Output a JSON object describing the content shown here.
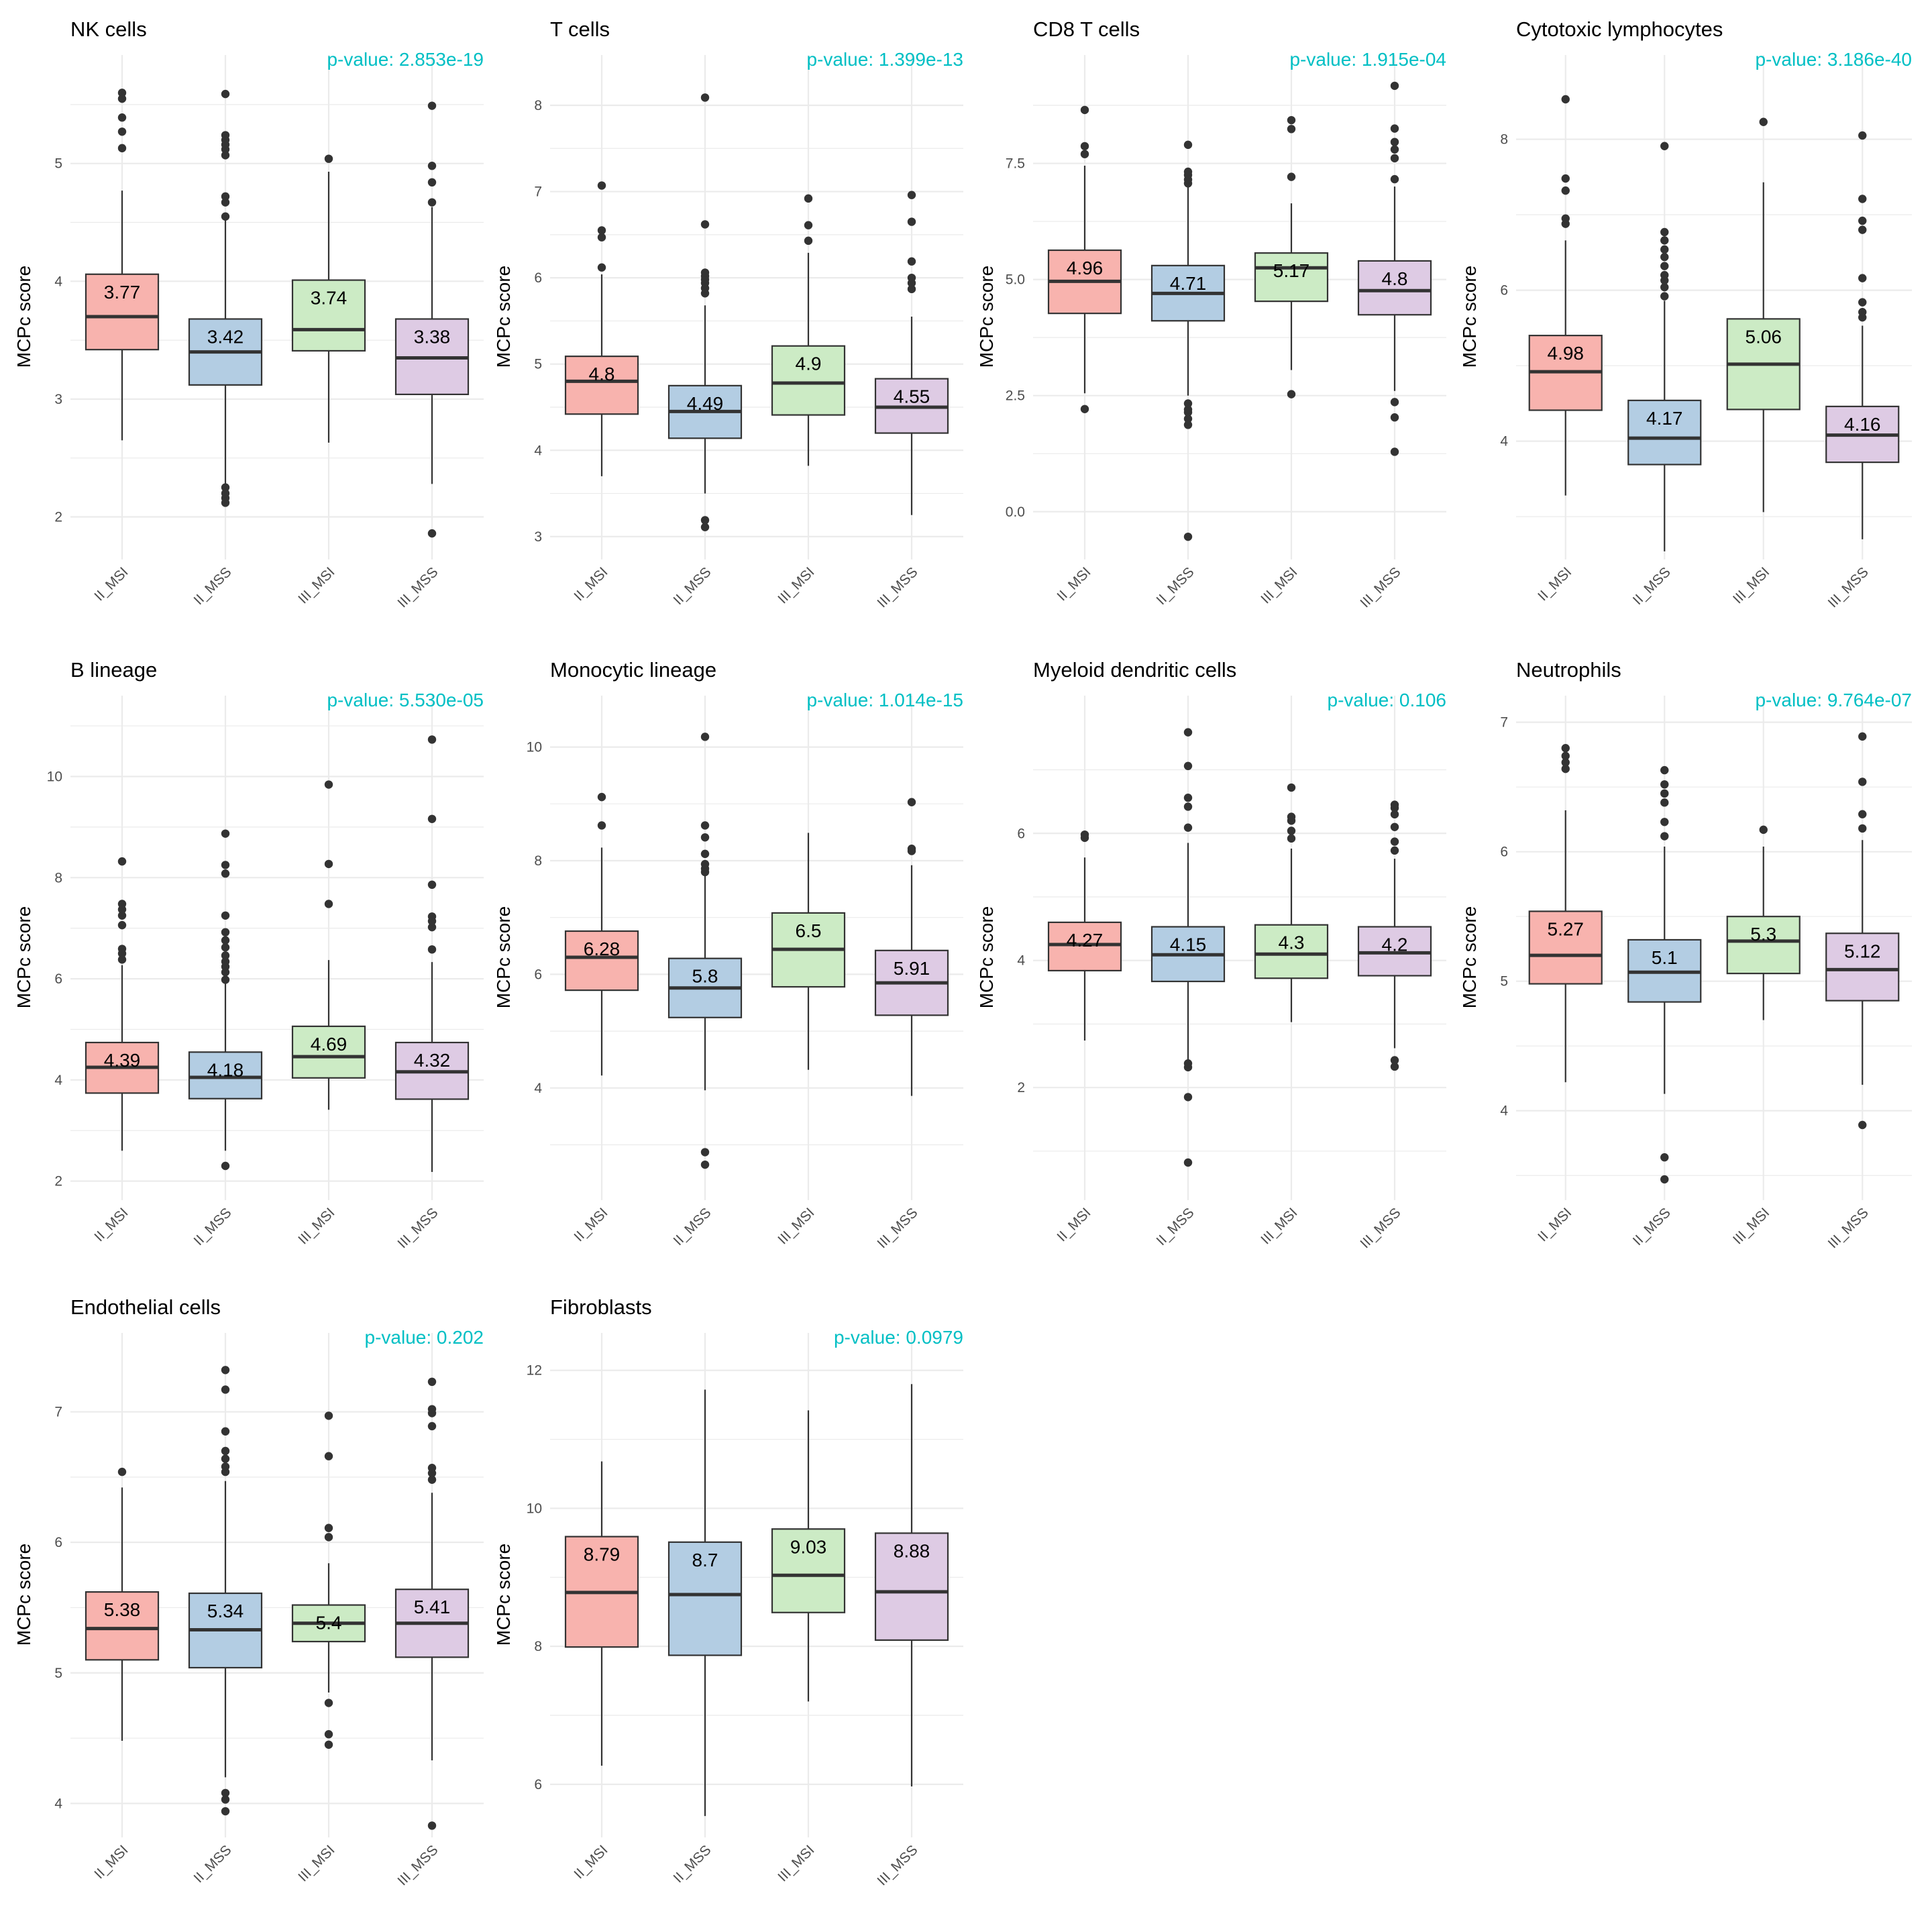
{
  "figure": {
    "ylabel": "MCPc score",
    "categories": [
      "II_MSI",
      "II_MSS",
      "III_MSI",
      "III_MSS"
    ],
    "colors": {
      "fills": [
        "#F8B3AE",
        "#B3CDE3",
        "#CCEBC5",
        "#DECBE4"
      ],
      "pvalue": "#00BFC4",
      "grid": "#EBEBEB",
      "box_border": "#333333",
      "text": "#000000",
      "tick_text": "#4D4D4D"
    }
  },
  "chart_data": [
    {
      "type": "box",
      "title": "NK cells",
      "pvalue_label": "p-value: 2.853e-19",
      "ylim": [
        1.65,
        5.75
      ],
      "yticks": [
        2,
        3,
        4,
        5
      ],
      "boxes": [
        {
          "category": "II_MSI",
          "label": "3.77",
          "q1": 3.42,
          "median": 3.7,
          "q3": 4.06,
          "whisker_low": 2.65,
          "whisker_high": 4.77,
          "outliers": [
            5.13,
            5.27,
            5.39,
            5.55,
            5.6
          ]
        },
        {
          "category": "II_MSS",
          "label": "3.42",
          "q1": 3.12,
          "median": 3.4,
          "q3": 3.68,
          "whisker_low": 2.28,
          "whisker_high": 4.52,
          "outliers": [
            2.12,
            2.16,
            2.2,
            2.25,
            4.55,
            4.67,
            4.72,
            5.07,
            5.12,
            5.16,
            5.2,
            5.24,
            5.59
          ]
        },
        {
          "category": "III_MSI",
          "label": "3.74",
          "q1": 3.41,
          "median": 3.59,
          "q3": 4.01,
          "whisker_low": 2.63,
          "whisker_high": 4.93,
          "outliers": [
            5.04
          ]
        },
        {
          "category": "III_MSS",
          "label": "3.38",
          "q1": 3.04,
          "median": 3.35,
          "q3": 3.68,
          "whisker_low": 2.28,
          "whisker_high": 4.63,
          "outliers": [
            1.86,
            4.67,
            4.84,
            4.98,
            5.49
          ]
        }
      ]
    },
    {
      "type": "box",
      "title": "T cells",
      "pvalue_label": "p-value: 1.399e-13",
      "ylim": [
        2.75,
        8.35
      ],
      "yticks": [
        3,
        4,
        5,
        6,
        7,
        8
      ],
      "boxes": [
        {
          "category": "II_MSI",
          "label": "4.8",
          "q1": 4.42,
          "median": 4.8,
          "q3": 5.09,
          "whisker_low": 3.7,
          "whisker_high": 6.04,
          "outliers": [
            6.12,
            6.47,
            6.55,
            7.07
          ]
        },
        {
          "category": "II_MSS",
          "label": "4.49",
          "q1": 4.14,
          "median": 4.45,
          "q3": 4.75,
          "whisker_low": 3.5,
          "whisker_high": 5.68,
          "outliers": [
            3.11,
            3.19,
            5.82,
            5.88,
            5.94,
            5.98,
            6.02,
            6.06,
            6.62,
            8.09
          ]
        },
        {
          "category": "III_MSI",
          "label": "4.9",
          "q1": 4.41,
          "median": 4.78,
          "q3": 5.21,
          "whisker_low": 3.82,
          "whisker_high": 6.29,
          "outliers": [
            6.43,
            6.61,
            6.92
          ]
        },
        {
          "category": "III_MSS",
          "label": "4.55",
          "q1": 4.2,
          "median": 4.5,
          "q3": 4.83,
          "whisker_low": 3.25,
          "whisker_high": 5.55,
          "outliers": [
            5.87,
            5.94,
            6.0,
            6.19,
            6.65,
            6.96
          ]
        }
      ]
    },
    {
      "type": "box",
      "title": "CD8 T cells",
      "pvalue_label": "p-value: 1.915e-04",
      "ylim": [
        -1.0,
        9.4
      ],
      "yticks": [
        0.0,
        2.5,
        5.0,
        7.5
      ],
      "ytick_labels": [
        "0.0",
        "2.5",
        "5.0",
        "7.5"
      ],
      "boxes": [
        {
          "category": "II_MSI",
          "label": "4.96",
          "q1": 4.27,
          "median": 4.96,
          "q3": 5.63,
          "whisker_low": 2.55,
          "whisker_high": 7.45,
          "outliers": [
            2.21,
            7.7,
            7.87,
            8.65
          ]
        },
        {
          "category": "II_MSS",
          "label": "4.71",
          "q1": 4.11,
          "median": 4.7,
          "q3": 5.3,
          "whisker_low": 2.5,
          "whisker_high": 7.0,
          "outliers": [
            -0.54,
            1.87,
            2.0,
            2.14,
            2.2,
            2.33,
            7.07,
            7.15,
            7.25,
            7.32,
            7.9
          ]
        },
        {
          "category": "III_MSI",
          "label": "5.17",
          "q1": 4.53,
          "median": 5.25,
          "q3": 5.57,
          "whisker_low": 3.05,
          "whisker_high": 6.64,
          "outliers": [
            2.53,
            7.21,
            8.24,
            8.43
          ]
        },
        {
          "category": "III_MSS",
          "label": "4.8",
          "q1": 4.24,
          "median": 4.76,
          "q3": 5.4,
          "whisker_low": 2.6,
          "whisker_high": 7.0,
          "outliers": [
            1.29,
            2.03,
            2.36,
            7.16,
            7.61,
            7.8,
            7.96,
            8.25,
            9.17
          ]
        }
      ]
    },
    {
      "type": "box",
      "title": "Cytotoxic lymphocytes",
      "pvalue_label": "p-value: 3.186e-40",
      "ylim": [
        2.45,
        8.85
      ],
      "yticks": [
        4,
        6,
        8
      ],
      "boxes": [
        {
          "category": "II_MSI",
          "label": "4.98",
          "q1": 4.41,
          "median": 4.92,
          "q3": 5.4,
          "whisker_low": 3.28,
          "whisker_high": 6.66,
          "outliers": [
            6.88,
            6.95,
            7.32,
            7.48,
            8.53
          ]
        },
        {
          "category": "II_MSS",
          "label": "4.17",
          "q1": 3.69,
          "median": 4.04,
          "q3": 4.54,
          "whisker_low": 2.54,
          "whisker_high": 5.86,
          "outliers": [
            5.92,
            6.04,
            6.13,
            6.2,
            6.32,
            6.44,
            6.54,
            6.66,
            6.77,
            7.91
          ]
        },
        {
          "category": "III_MSI",
          "label": "5.06",
          "q1": 4.42,
          "median": 5.02,
          "q3": 5.62,
          "whisker_low": 3.06,
          "whisker_high": 7.43,
          "outliers": [
            8.23
          ]
        },
        {
          "category": "III_MSS",
          "label": "4.16",
          "q1": 3.72,
          "median": 4.08,
          "q3": 4.46,
          "whisker_low": 2.7,
          "whisker_high": 5.53,
          "outliers": [
            5.64,
            5.71,
            5.84,
            6.16,
            6.8,
            6.92,
            7.21,
            8.05
          ]
        }
      ]
    },
    {
      "type": "box",
      "title": "B lineage",
      "pvalue_label": "p-value: 5.530e-05",
      "ylim": [
        1.65,
        11.2
      ],
      "yticks": [
        2,
        4,
        6,
        8,
        10
      ],
      "boxes": [
        {
          "category": "II_MSI",
          "label": "4.39",
          "q1": 3.74,
          "median": 4.25,
          "q3": 4.74,
          "whisker_low": 2.6,
          "whisker_high": 6.27,
          "outliers": [
            6.38,
            6.5,
            6.59,
            7.06,
            7.25,
            7.37,
            7.48,
            8.32
          ]
        },
        {
          "category": "II_MSS",
          "label": "4.18",
          "q1": 3.63,
          "median": 4.05,
          "q3": 4.55,
          "whisker_low": 2.6,
          "whisker_high": 5.92,
          "outliers": [
            2.3,
            5.98,
            6.13,
            6.24,
            6.34,
            6.46,
            6.62,
            6.76,
            6.92,
            7.25,
            8.08,
            8.25,
            8.87
          ]
        },
        {
          "category": "III_MSI",
          "label": "4.69",
          "q1": 4.04,
          "median": 4.46,
          "q3": 5.06,
          "whisker_low": 3.41,
          "whisker_high": 6.37,
          "outliers": [
            7.48,
            8.27,
            9.84
          ]
        },
        {
          "category": "III_MSS",
          "label": "4.32",
          "q1": 3.62,
          "median": 4.16,
          "q3": 4.74,
          "whisker_low": 2.18,
          "whisker_high": 6.33,
          "outliers": [
            6.58,
            7.02,
            7.14,
            7.23,
            7.86,
            9.16,
            10.73
          ]
        }
      ]
    },
    {
      "type": "box",
      "title": "Monocytic lineage",
      "pvalue_label": "p-value: 1.014e-15",
      "ylim": [
        2.05,
        10.55
      ],
      "yticks": [
        4,
        6,
        8,
        10
      ],
      "boxes": [
        {
          "category": "II_MSI",
          "label": "6.28",
          "q1": 5.72,
          "median": 6.3,
          "q3": 6.76,
          "whisker_low": 4.22,
          "whisker_high": 8.23,
          "outliers": [
            8.62,
            9.12
          ]
        },
        {
          "category": "II_MSS",
          "label": "5.8",
          "q1": 5.24,
          "median": 5.76,
          "q3": 6.28,
          "whisker_low": 3.96,
          "whisker_high": 7.73,
          "outliers": [
            2.65,
            2.87,
            7.8,
            7.86,
            7.94,
            8.12,
            8.41,
            8.62,
            10.18
          ]
        },
        {
          "category": "III_MSI",
          "label": "6.5",
          "q1": 5.78,
          "median": 6.44,
          "q3": 7.08,
          "whisker_low": 4.32,
          "whisker_high": 8.49,
          "outliers": []
        },
        {
          "category": "III_MSS",
          "label": "5.91",
          "q1": 5.28,
          "median": 5.85,
          "q3": 6.42,
          "whisker_low": 3.86,
          "whisker_high": 7.92,
          "outliers": [
            8.17,
            8.21,
            9.03
          ]
        }
      ]
    },
    {
      "type": "box",
      "title": "Myeloid dendritic cells",
      "pvalue_label": "p-value: 0.106",
      "ylim": [
        0.25,
        7.85
      ],
      "yticks": [
        2,
        4,
        6
      ],
      "boxes": [
        {
          "category": "II_MSI",
          "label": "4.27",
          "q1": 3.84,
          "median": 4.25,
          "q3": 4.6,
          "whisker_low": 2.74,
          "whisker_high": 5.62,
          "outliers": [
            5.93,
            5.98
          ]
        },
        {
          "category": "II_MSS",
          "label": "4.15",
          "q1": 3.67,
          "median": 4.09,
          "q3": 4.53,
          "whisker_low": 2.4,
          "whisker_high": 5.85,
          "outliers": [
            0.82,
            1.85,
            2.32,
            2.38,
            6.09,
            6.42,
            6.56,
            7.06,
            7.59
          ]
        },
        {
          "category": "III_MSI",
          "label": "4.3",
          "q1": 3.72,
          "median": 4.1,
          "q3": 4.56,
          "whisker_low": 3.03,
          "whisker_high": 5.76,
          "outliers": [
            5.92,
            6.04,
            6.2,
            6.26,
            6.72
          ]
        },
        {
          "category": "III_MSS",
          "label": "4.2",
          "q1": 3.76,
          "median": 4.12,
          "q3": 4.53,
          "whisker_low": 2.62,
          "whisker_high": 5.6,
          "outliers": [
            2.33,
            2.43,
            5.73,
            5.87,
            6.1,
            6.3,
            6.4,
            6.45
          ]
        }
      ]
    },
    {
      "type": "box",
      "title": "Neutrophils",
      "pvalue_label": "p-value: 9.764e-07",
      "ylim": [
        3.32,
        7.05
      ],
      "yticks": [
        4,
        5,
        6,
        7
      ],
      "boxes": [
        {
          "category": "II_MSI",
          "label": "5.27",
          "q1": 4.98,
          "median": 5.2,
          "q3": 5.54,
          "whisker_low": 4.22,
          "whisker_high": 6.32,
          "outliers": [
            6.64,
            6.69,
            6.74,
            6.8
          ]
        },
        {
          "category": "II_MSS",
          "label": "5.1",
          "q1": 4.84,
          "median": 5.07,
          "q3": 5.32,
          "whisker_low": 4.13,
          "whisker_high": 6.04,
          "outliers": [
            3.47,
            3.64,
            6.12,
            6.23,
            6.38,
            6.45,
            6.52,
            6.63
          ]
        },
        {
          "category": "III_MSI",
          "label": "5.3",
          "q1": 5.06,
          "median": 5.31,
          "q3": 5.5,
          "whisker_low": 4.7,
          "whisker_high": 6.04,
          "outliers": [
            6.17
          ]
        },
        {
          "category": "III_MSS",
          "label": "5.12",
          "q1": 4.85,
          "median": 5.09,
          "q3": 5.37,
          "whisker_low": 4.2,
          "whisker_high": 6.09,
          "outliers": [
            3.89,
            6.18,
            6.29,
            6.54,
            6.89
          ]
        }
      ]
    },
    {
      "type": "box",
      "title": "Endothelial cells",
      "pvalue_label": "p-value: 0.202",
      "ylim": [
        3.75,
        7.45
      ],
      "yticks": [
        4,
        5,
        6,
        7
      ],
      "boxes": [
        {
          "category": "II_MSI",
          "label": "5.38",
          "q1": 5.1,
          "median": 5.34,
          "q3": 5.62,
          "whisker_low": 4.48,
          "whisker_high": 6.42,
          "outliers": [
            6.54
          ]
        },
        {
          "category": "II_MSS",
          "label": "5.34",
          "q1": 5.04,
          "median": 5.33,
          "q3": 5.61,
          "whisker_low": 4.2,
          "whisker_high": 6.47,
          "outliers": [
            3.94,
            4.03,
            4.08,
            6.54,
            6.58,
            6.64,
            6.7,
            6.85,
            7.17,
            7.32
          ]
        },
        {
          "category": "III_MSI",
          "label": "5.4",
          "q1": 5.24,
          "median": 5.38,
          "q3": 5.52,
          "whisker_low": 4.85,
          "whisker_high": 5.84,
          "outliers": [
            4.45,
            4.53,
            4.77,
            6.04,
            6.11,
            6.66,
            6.97
          ]
        },
        {
          "category": "III_MSS",
          "label": "5.41",
          "q1": 5.12,
          "median": 5.38,
          "q3": 5.64,
          "whisker_low": 4.33,
          "whisker_high": 6.38,
          "outliers": [
            3.83,
            6.48,
            6.53,
            6.57,
            6.89,
            6.99,
            7.02,
            7.23
          ]
        }
      ]
    },
    {
      "type": "box",
      "title": "Fibroblasts",
      "pvalue_label": "p-value: 0.0979",
      "ylim": [
        5.25,
        12.25
      ],
      "yticks": [
        6,
        8,
        10,
        12
      ],
      "boxes": [
        {
          "category": "II_MSI",
          "label": "8.79",
          "q1": 7.99,
          "median": 8.78,
          "q3": 9.59,
          "whisker_low": 6.27,
          "whisker_high": 10.68,
          "outliers": []
        },
        {
          "category": "II_MSS",
          "label": "8.7",
          "q1": 7.87,
          "median": 8.75,
          "q3": 9.51,
          "whisker_low": 5.54,
          "whisker_high": 11.72,
          "outliers": []
        },
        {
          "category": "III_MSI",
          "label": "9.03",
          "q1": 8.49,
          "median": 9.03,
          "q3": 9.7,
          "whisker_low": 7.2,
          "whisker_high": 11.42,
          "outliers": []
        },
        {
          "category": "III_MSS",
          "label": "8.88",
          "q1": 8.09,
          "median": 8.79,
          "q3": 9.64,
          "whisker_low": 5.97,
          "whisker_high": 11.8,
          "outliers": []
        }
      ]
    }
  ]
}
